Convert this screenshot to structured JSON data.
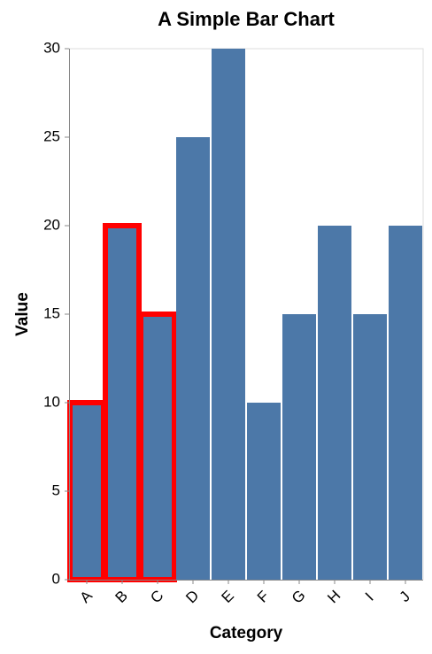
{
  "chart_data": {
    "type": "bar",
    "title": "A Simple Bar Chart",
    "xlabel": "Category",
    "ylabel": "Value",
    "categories": [
      "A",
      "B",
      "C",
      "D",
      "E",
      "F",
      "G",
      "H",
      "I",
      "J"
    ],
    "values": [
      10,
      20,
      15,
      25,
      30,
      10,
      15,
      20,
      15,
      20
    ],
    "highlighted": [
      "A",
      "B",
      "C"
    ],
    "ylim": [
      0,
      30
    ],
    "yticks": [
      0,
      5,
      10,
      15,
      20,
      25,
      30
    ],
    "grid": false,
    "bar_color": "#4c78a8",
    "highlight_color": "#ff0000",
    "x_tick_label_rotation": "rotated -45 degrees"
  }
}
